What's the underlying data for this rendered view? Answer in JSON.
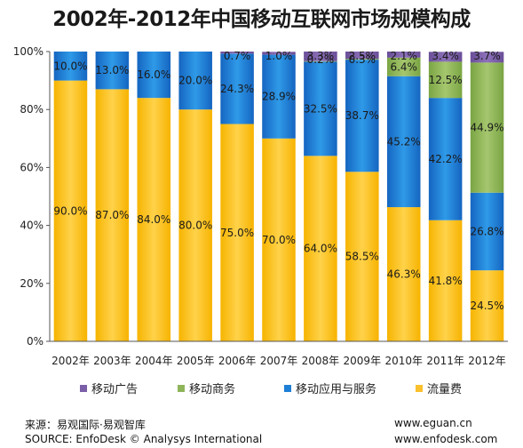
{
  "title": "2002年-2012年中国移动互联网市场规模构成",
  "footer": {
    "source_cn": "来源：易观国际·易观智库",
    "source_en": "SOURCE: EnfoDesk © Analysys International",
    "site1": "www.eguan.cn",
    "site2": "www.enfodesk.com"
  },
  "chart_data": {
    "type": "bar",
    "stacked": true,
    "percent_stacked": true,
    "categories": [
      "2002年",
      "2003年",
      "2004年",
      "2005年",
      "2006年",
      "2007年",
      "2008年",
      "2009年",
      "2010年",
      "2011年",
      "2012年"
    ],
    "ylim": [
      0,
      100
    ],
    "yticks": [
      "0%",
      "20%",
      "40%",
      "60%",
      "80%",
      "100%"
    ],
    "legend_position": "bottom",
    "series": [
      {
        "name": "流量费",
        "color": "#fbc02d",
        "values": [
          90.0,
          87.0,
          84.0,
          80.0,
          75.0,
          70.0,
          64.0,
          58.5,
          46.3,
          41.8,
          24.5
        ],
        "labels": [
          "90.0%",
          "87.0%",
          "84.0%",
          "80.0%",
          "75.0%",
          "70.0%",
          "64.0%",
          "58.5%",
          "46.3%",
          "41.8%",
          "24.5%"
        ]
      },
      {
        "name": "移动应用与服务",
        "color": "#1e7fd6",
        "values": [
          10.0,
          13.0,
          16.0,
          20.0,
          24.3,
          28.9,
          32.5,
          38.7,
          45.2,
          42.2,
          26.8
        ],
        "labels": [
          "10.0%",
          "13.0%",
          "16.0%",
          "20.0%",
          "24.3%",
          "28.9%",
          "32.5%",
          "38.7%",
          "45.2%",
          "42.2%",
          "26.8%"
        ]
      },
      {
        "name": "移动商务",
        "color": "#8fb55a",
        "values": [
          0,
          0,
          0,
          0,
          0,
          0,
          0.2,
          0.3,
          6.4,
          12.5,
          44.9
        ],
        "labels": [
          "",
          "",
          "",
          "",
          "",
          "",
          "0.2%",
          "0.3%",
          "6.4%",
          "12.5%",
          "44.9%"
        ]
      },
      {
        "name": "移动广告",
        "color": "#7b5ea8",
        "values": [
          0,
          0,
          0,
          0,
          0.7,
          1.0,
          3.3,
          2.5,
          2.1,
          3.4,
          3.7
        ],
        "labels": [
          "",
          "",
          "",
          "",
          "0.7%",
          "1.0%",
          "3.3%",
          "2.5%",
          "2.1%",
          "3.4%",
          "3.7%"
        ]
      }
    ],
    "legend_order": [
      "移动广告",
      "移动商务",
      "移动应用与服务",
      "流量费"
    ],
    "legend_icon_colors": {
      "移动广告": "#7b5ea8",
      "移动商务": "#8fb55a",
      "移动应用与服务": "#1e7fd6",
      "流量费": "#fbc02d"
    }
  }
}
